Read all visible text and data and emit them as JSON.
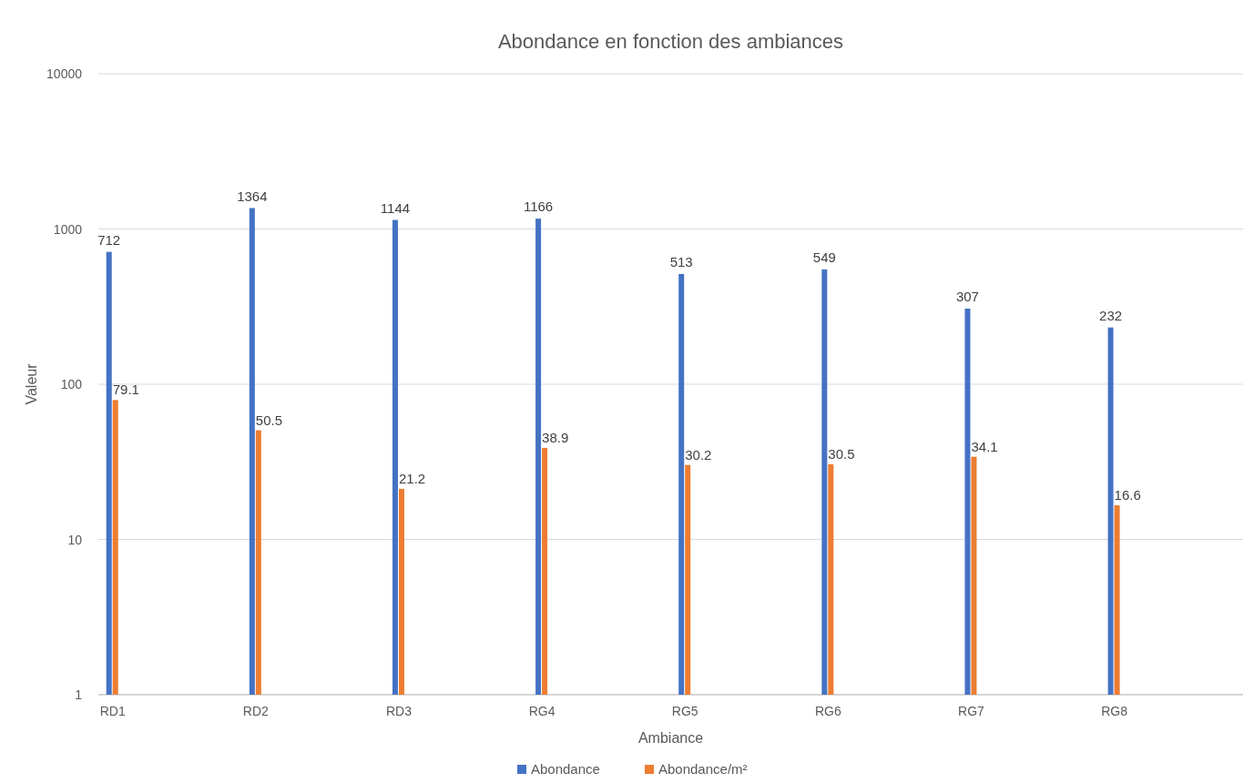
{
  "chart_data": {
    "type": "bar",
    "title": "Abondance en fonction des ambiances",
    "xlabel": "Ambiance",
    "ylabel": "Valeur",
    "categories": [
      "RD1",
      "RD2",
      "RD3",
      "RG4",
      "RG5",
      "RG6",
      "RG7",
      "RG8"
    ],
    "series": [
      {
        "name": "Abondance",
        "color": "#4472c4",
        "values": [
          712,
          1364,
          1144,
          1166,
          513,
          549,
          307,
          232
        ]
      },
      {
        "name": "Abondance/m²",
        "color": "#ed7d31",
        "values": [
          79.1,
          50.5,
          21.2,
          38.9,
          30.2,
          30.5,
          34.1,
          16.6
        ]
      }
    ],
    "log": true,
    "ylim": [
      1,
      10000
    ],
    "yticks": [
      1,
      10,
      100,
      1000,
      10000
    ],
    "grid": "y",
    "legend": "bottom",
    "data_labels": true
  }
}
